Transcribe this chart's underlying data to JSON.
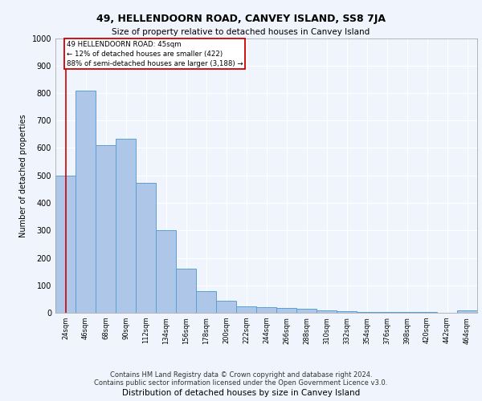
{
  "title": "49, HELLENDOORN ROAD, CANVEY ISLAND, SS8 7JA",
  "subtitle": "Size of property relative to detached houses in Canvey Island",
  "xlabel": "Distribution of detached houses by size in Canvey Island",
  "ylabel": "Number of detached properties",
  "categories": [
    "24sqm",
    "46sqm",
    "68sqm",
    "90sqm",
    "112sqm",
    "134sqm",
    "156sqm",
    "178sqm",
    "200sqm",
    "222sqm",
    "244sqm",
    "266sqm",
    "288sqm",
    "310sqm",
    "332sqm",
    "354sqm",
    "376sqm",
    "398sqm",
    "420sqm",
    "442sqm",
    "464sqm"
  ],
  "values": [
    498,
    808,
    610,
    635,
    474,
    300,
    160,
    78,
    43,
    24,
    21,
    18,
    14,
    10,
    5,
    4,
    3,
    2,
    2,
    1,
    10
  ],
  "bar_color": "#aec6e8",
  "bar_edge_color": "#5a9fd4",
  "annotation_text_line1": "49 HELLENDOORN ROAD: 45sqm",
  "annotation_text_line2": "← 12% of detached houses are smaller (422)",
  "annotation_text_line3": "88% of semi-detached houses are larger (3,188) →",
  "annotation_box_color": "#cc0000",
  "ylim": [
    0,
    1000
  ],
  "yticks": [
    0,
    100,
    200,
    300,
    400,
    500,
    600,
    700,
    800,
    900,
    1000
  ],
  "footer_line1": "Contains HM Land Registry data © Crown copyright and database right 2024.",
  "footer_line2": "Contains public sector information licensed under the Open Government Licence v3.0.",
  "plot_bg_color": "#f0f4fc",
  "grid_color": "#ffffff"
}
